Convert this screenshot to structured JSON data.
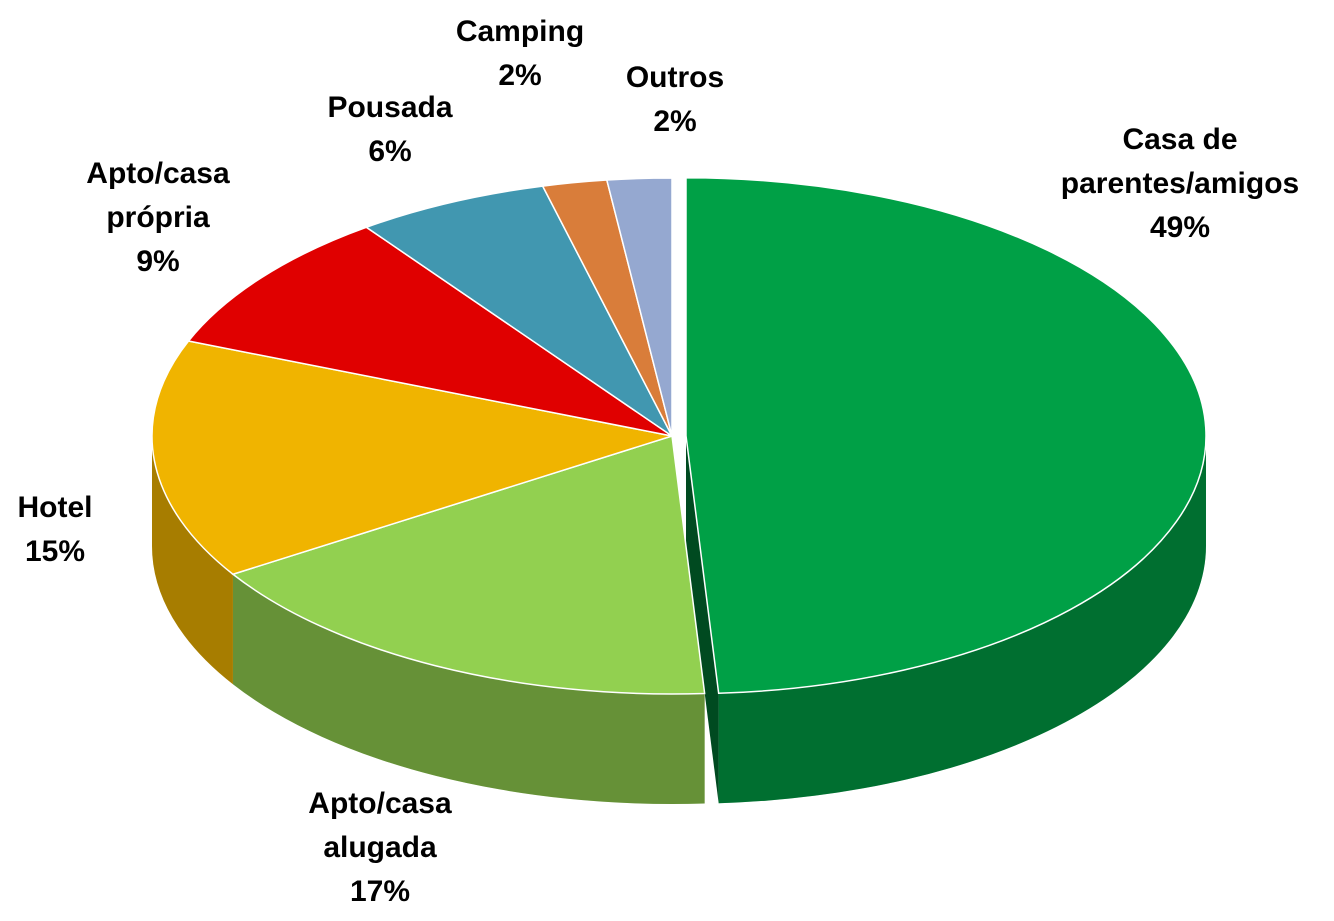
{
  "chart_data": {
    "type": "pie",
    "categories": [
      "Casa de parentes/amigos",
      "Apto/casa alugada",
      "Hotel",
      "Apto/casa própria",
      "Pousada",
      "Camping",
      "Outros"
    ],
    "values": [
      49,
      17,
      15,
      9,
      6,
      2,
      2
    ],
    "value_labels": [
      "49%",
      "17%",
      "15%",
      "9%",
      "6%",
      "2%",
      "2%"
    ],
    "colors": [
      "#00a046",
      "#92d050",
      "#f0b400",
      "#e00000",
      "#4197b0",
      "#d97d3a",
      "#95a8d0"
    ]
  }
}
